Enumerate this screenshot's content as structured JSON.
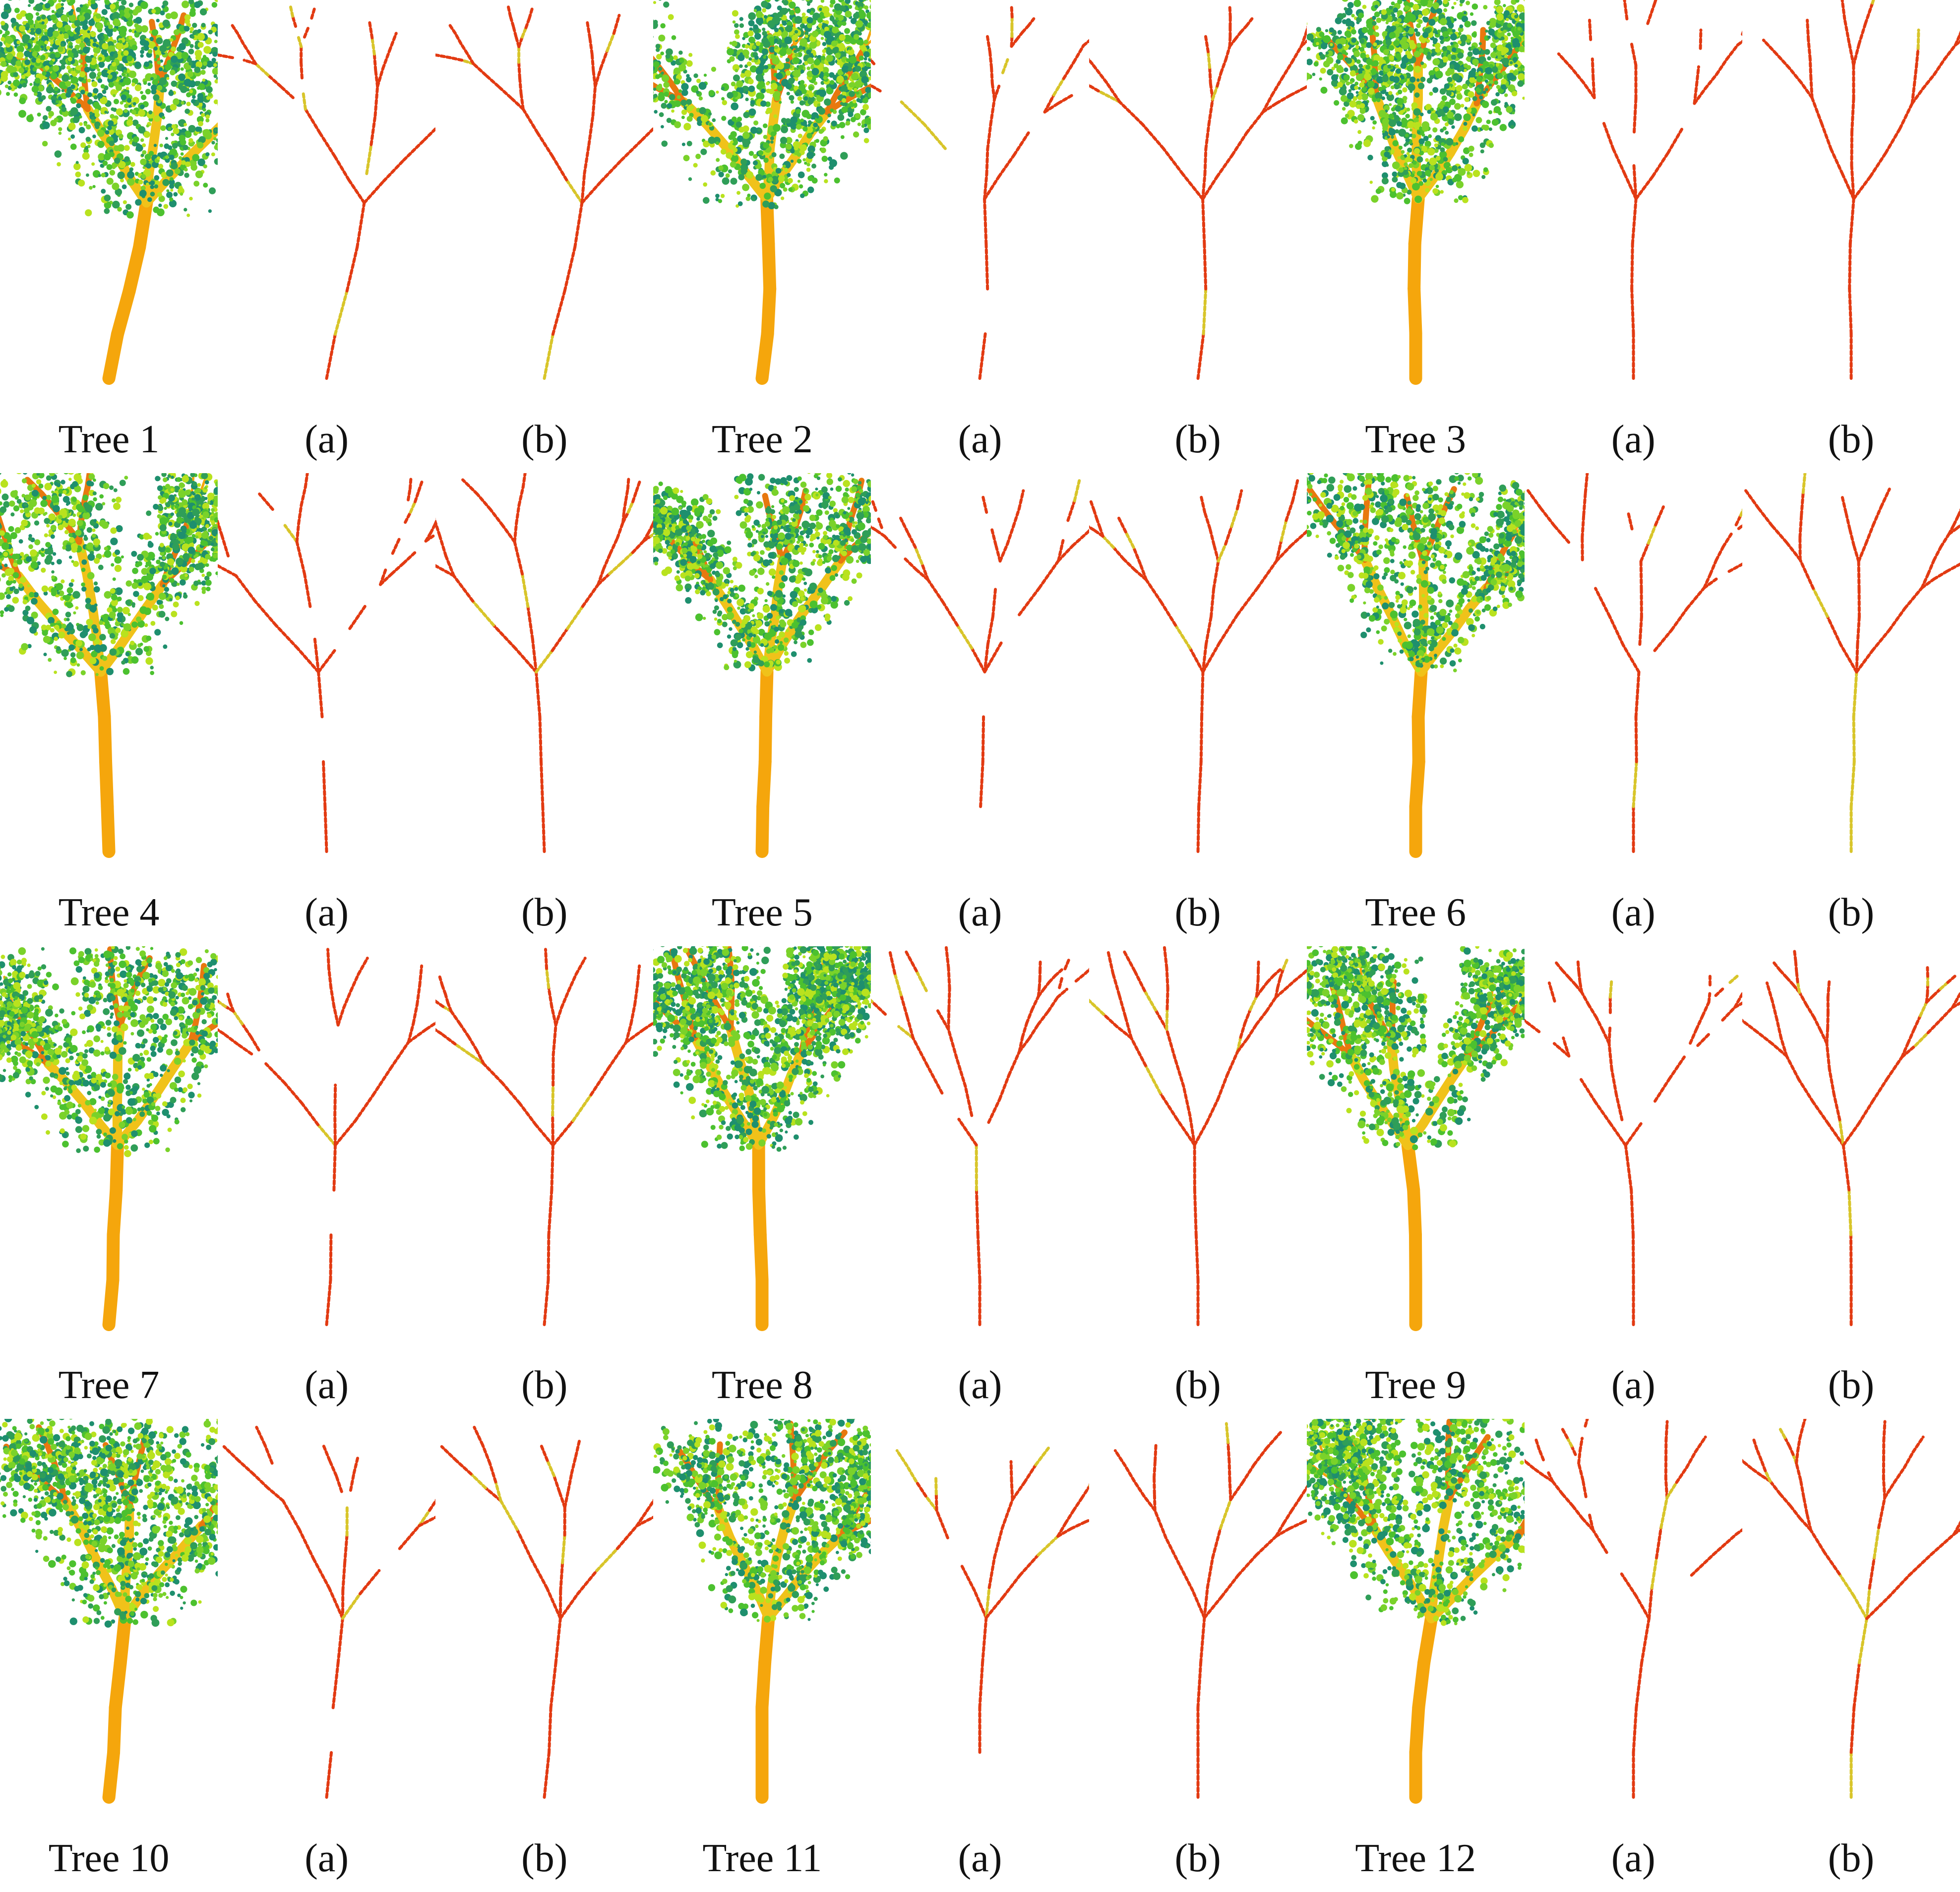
{
  "rows": [
    [
      {
        "label": "Tree 1",
        "kind": "cloud",
        "seed": 11,
        "lean": 0.55,
        "crown": 1.25
      },
      {
        "label": "(a)",
        "kind": "partial",
        "seed": 11,
        "lean": 0.55
      },
      {
        "label": "(b)",
        "kind": "complete",
        "seed": 11,
        "lean": 0.55
      },
      {
        "label": "Tree 2",
        "kind": "cloud",
        "seed": 22,
        "lean": 0.35,
        "crown": 1.15
      },
      {
        "label": "(a)",
        "kind": "partial",
        "seed": 22,
        "lean": 0.35
      },
      {
        "label": "(b)",
        "kind": "complete",
        "seed": 22,
        "lean": 0.35
      },
      {
        "label": "Tree 3",
        "kind": "cloud",
        "seed": 33,
        "lean": 0.0,
        "crown": 0.95
      },
      {
        "label": "(a)",
        "kind": "partial",
        "seed": 33,
        "lean": 0.0
      },
      {
        "label": "(b)",
        "kind": "complete",
        "seed": 33,
        "lean": 0.0
      }
    ],
    [
      {
        "label": "Tree 4",
        "kind": "cloud",
        "seed": 44,
        "lean": -0.1,
        "crown": 0.95
      },
      {
        "label": "(a)",
        "kind": "partial",
        "seed": 44,
        "lean": -0.1
      },
      {
        "label": "(b)",
        "kind": "complete",
        "seed": 44,
        "lean": -0.1
      },
      {
        "label": "Tree 5",
        "kind": "cloud",
        "seed": 55,
        "lean": 0.05,
        "crown": 0.75
      },
      {
        "label": "(a)",
        "kind": "partial",
        "seed": 55,
        "lean": 0.05
      },
      {
        "label": "(b)",
        "kind": "complete",
        "seed": 55,
        "lean": 0.05
      },
      {
        "label": "Tree 6",
        "kind": "cloud",
        "seed": 66,
        "lean": 0.0,
        "crown": 0.75
      },
      {
        "label": "(a)",
        "kind": "partial",
        "seed": 66,
        "lean": 0.0
      },
      {
        "label": "(b)",
        "kind": "complete",
        "seed": 66,
        "lean": 0.0
      }
    ],
    [
      {
        "label": "Tree 7",
        "kind": "cloud",
        "seed": 77,
        "lean": 0.25,
        "crown": 1.05
      },
      {
        "label": "(a)",
        "kind": "partial",
        "seed": 77,
        "lean": 0.25
      },
      {
        "label": "(b)",
        "kind": "complete",
        "seed": 77,
        "lean": 0.25
      },
      {
        "label": "Tree 8",
        "kind": "cloud",
        "seed": 88,
        "lean": 0.0,
        "crown": 1.0
      },
      {
        "label": "(a)",
        "kind": "partial",
        "seed": 88,
        "lean": 0.0
      },
      {
        "label": "(b)",
        "kind": "complete",
        "seed": 88,
        "lean": 0.0
      },
      {
        "label": "Tree 9",
        "kind": "cloud",
        "seed": 99,
        "lean": 0.0,
        "crown": 0.85
      },
      {
        "label": "(a)",
        "kind": "partial",
        "seed": 99,
        "lean": 0.0
      },
      {
        "label": "(b)",
        "kind": "complete",
        "seed": 99,
        "lean": 0.0
      }
    ],
    [
      {
        "label": "Tree 10",
        "kind": "cloud",
        "seed": 101,
        "lean": 0.3,
        "crown": 1.2
      },
      {
        "label": "(a)",
        "kind": "partial",
        "seed": 101,
        "lean": 0.3
      },
      {
        "label": "(b)",
        "kind": "complete",
        "seed": 101,
        "lean": 0.3
      },
      {
        "label": "Tree 11",
        "kind": "cloud",
        "seed": 111,
        "lean": 0.0,
        "crown": 0.9
      },
      {
        "label": "(a)",
        "kind": "partial",
        "seed": 111,
        "lean": 0.0
      },
      {
        "label": "(b)",
        "kind": "complete",
        "seed": 111,
        "lean": 0.0
      },
      {
        "label": "Tree 12",
        "kind": "cloud",
        "seed": 121,
        "lean": 0.0,
        "crown": 1.0
      },
      {
        "label": "(a)",
        "kind": "partial",
        "seed": 121,
        "lean": 0.0
      },
      {
        "label": "(b)",
        "kind": "complete",
        "seed": 121,
        "lean": 0.0
      }
    ]
  ],
  "colors": {
    "foliage": [
      "#4cc12f",
      "#7ad22a",
      "#2f9e58",
      "#b9e21e",
      "#1e8f6e"
    ],
    "trunk": [
      "#f5a60c",
      "#f0c21a",
      "#e8780f"
    ],
    "skeleton": "#e23a12",
    "skeleton_alt": "#d8c52a"
  }
}
